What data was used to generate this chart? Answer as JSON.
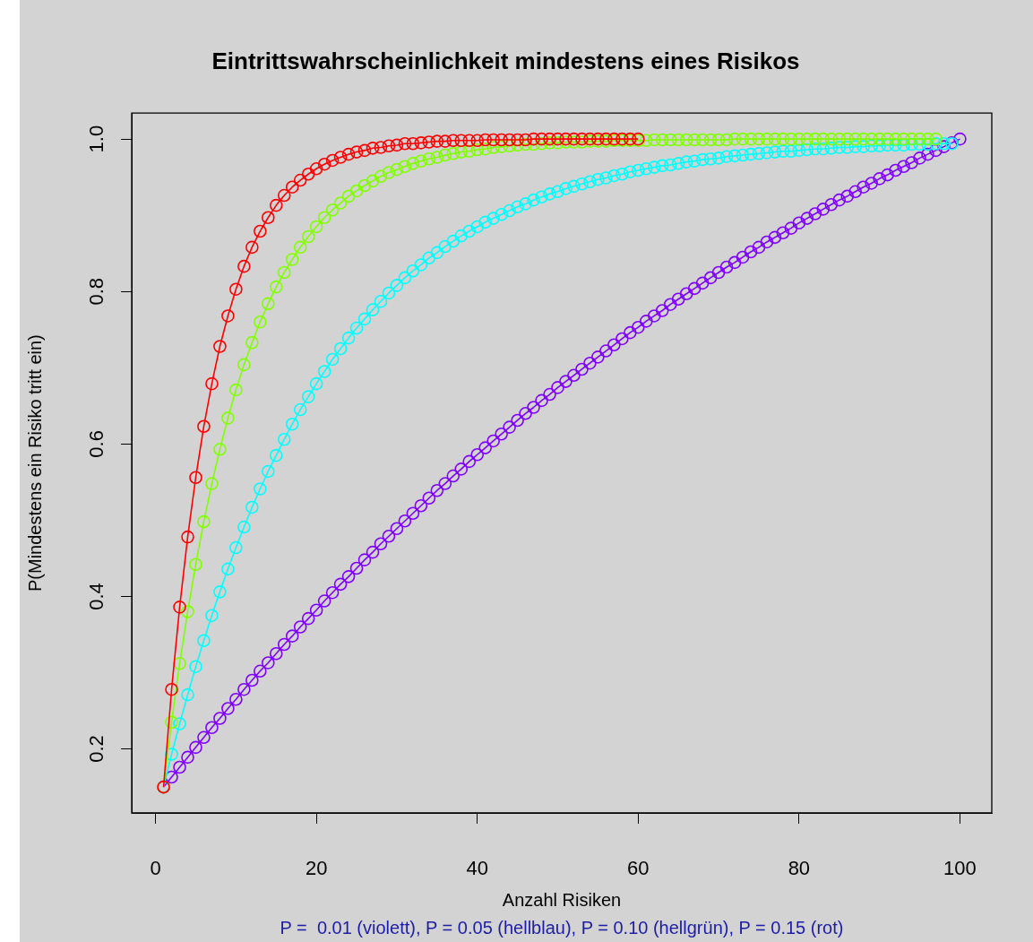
{
  "chart_data": {
    "type": "line",
    "title": "Eintrittswahrscheinlichkeit mindestens eines Risikos",
    "xlabel": "Anzahl Risiken",
    "ylabel": "P(Mindestens ein Risiko tritt ein)",
    "annotations": [
      "P =  0.01 (violett), P = 0.05 (hellblau), P = 0.10 (hellgrün), P = 0.15 (rot)"
    ],
    "x": [
      1,
      2,
      3,
      4,
      5,
      6,
      7,
      8,
      9,
      10,
      11,
      12,
      13,
      14,
      15,
      16,
      17,
      18,
      19,
      20,
      21,
      22,
      23,
      24,
      25,
      26,
      27,
      28,
      29,
      30,
      31,
      32,
      33,
      34,
      35,
      36,
      37,
      38,
      39,
      40,
      41,
      42,
      43,
      44,
      45,
      46,
      47,
      48,
      49,
      50,
      51,
      52,
      53,
      54,
      55,
      56,
      57,
      58,
      59,
      60,
      61,
      62,
      63,
      64,
      65,
      66,
      67,
      68,
      69,
      70,
      71,
      72,
      73,
      74,
      75,
      76,
      77,
      78,
      79,
      80,
      81,
      82,
      83,
      84,
      85,
      86,
      87,
      88,
      89,
      90,
      91,
      92,
      93,
      94,
      95,
      96,
      97,
      98,
      99,
      100
    ],
    "series": [
      {
        "color": "#8000ff",
        "values": [
          0.15,
          0.163,
          0.176,
          0.189,
          0.202,
          0.215,
          0.228,
          0.24,
          0.253,
          0.265,
          0.278,
          0.29,
          0.302,
          0.313,
          0.325,
          0.337,
          0.348,
          0.36,
          0.371,
          0.382,
          0.394,
          0.405,
          0.416,
          0.426,
          0.437,
          0.448,
          0.458,
          0.469,
          0.479,
          0.489,
          0.499,
          0.509,
          0.519,
          0.529,
          0.539,
          0.548,
          0.558,
          0.567,
          0.577,
          0.586,
          0.595,
          0.604,
          0.613,
          0.622,
          0.631,
          0.64,
          0.648,
          0.657,
          0.665,
          0.674,
          0.682,
          0.69,
          0.698,
          0.706,
          0.714,
          0.722,
          0.73,
          0.738,
          0.746,
          0.753,
          0.761,
          0.768,
          0.775,
          0.783,
          0.79,
          0.797,
          0.804,
          0.811,
          0.818,
          0.825,
          0.832,
          0.838,
          0.845,
          0.852,
          0.858,
          0.865,
          0.871,
          0.877,
          0.883,
          0.89,
          0.896,
          0.902,
          0.908,
          0.914,
          0.92,
          0.925,
          0.931,
          0.937,
          0.942,
          0.948,
          0.953,
          0.959,
          0.964,
          0.969,
          0.975,
          0.98,
          0.985,
          0.99,
          0.995,
          1
        ]
      },
      {
        "color": "#00ffff",
        "values": [
          0.15,
          0.193,
          0.233,
          0.271,
          0.308,
          0.342,
          0.375,
          0.406,
          0.436,
          0.464,
          0.491,
          0.517,
          0.541,
          0.564,
          0.585,
          0.606,
          0.626,
          0.645,
          0.662,
          0.679,
          0.695,
          0.711,
          0.725,
          0.739,
          0.752,
          0.764,
          0.776,
          0.787,
          0.798,
          0.808,
          0.818,
          0.827,
          0.835,
          0.844,
          0.851,
          0.859,
          0.866,
          0.873,
          0.879,
          0.885,
          0.891,
          0.896,
          0.901,
          0.906,
          0.911,
          0.915,
          0.92,
          0.924,
          0.928,
          0.931,
          0.935,
          0.938,
          0.941,
          0.944,
          0.947,
          0.949,
          0.952,
          0.954,
          0.957,
          0.959,
          0.961,
          0.963,
          0.965,
          0.966,
          0.968,
          0.97,
          0.971,
          0.973,
          0.974,
          0.975,
          0.977,
          0.978,
          0.979,
          0.98,
          0.981,
          0.982,
          0.983,
          0.984,
          0.984,
          0.985,
          0.986,
          0.987,
          0.987,
          0.988,
          0.989,
          0.989,
          0.99,
          0.99,
          0.991,
          0.991,
          0.992,
          0.992,
          0.992,
          0.993,
          0.993,
          0.993,
          0.994,
          0.994,
          0.994,
          null
        ]
      },
      {
        "color": "#80ff00",
        "values": [
          0.15,
          0.235,
          0.312,
          0.38,
          0.442,
          0.498,
          0.548,
          0.593,
          0.634,
          0.671,
          0.704,
          0.733,
          0.76,
          0.784,
          0.806,
          0.825,
          0.842,
          0.858,
          0.872,
          0.885,
          0.897,
          0.907,
          0.916,
          0.925,
          0.932,
          0.939,
          0.945,
          0.951,
          0.956,
          0.96,
          0.964,
          0.968,
          0.971,
          0.974,
          0.976,
          0.979,
          0.981,
          0.983,
          0.984,
          0.986,
          0.987,
          0.989,
          0.99,
          0.991,
          0.992,
          0.993,
          0.993,
          0.994,
          0.995,
          0.995,
          0.996,
          0.996,
          0.996,
          0.997,
          0.997,
          0.997,
          0.998,
          0.998,
          0.998,
          0.998,
          0.998,
          0.999,
          0.999,
          0.999,
          0.999,
          0.999,
          0.999,
          0.999,
          0.999,
          0.999,
          0.999,
          1,
          1,
          1,
          1,
          1,
          1,
          1,
          1,
          1,
          1,
          1,
          1,
          1,
          1,
          1,
          1,
          1,
          1,
          1,
          1,
          1,
          1,
          1,
          1,
          1,
          1,
          null,
          null,
          null
        ]
      },
      {
        "color": "#ff0000",
        "values": [
          0.15,
          0.278,
          0.386,
          0.478,
          0.556,
          0.623,
          0.679,
          0.728,
          0.768,
          0.803,
          0.833,
          0.858,
          0.879,
          0.897,
          0.913,
          0.926,
          0.937,
          0.946,
          0.954,
          0.961,
          0.967,
          0.972,
          0.976,
          0.98,
          0.983,
          0.985,
          0.988,
          0.989,
          0.991,
          0.992,
          0.994,
          0.994,
          0.995,
          0.996,
          0.997,
          0.997,
          0.998,
          0.998,
          0.998,
          0.998,
          0.999,
          0.999,
          0.999,
          0.999,
          0.999,
          0.999,
          1,
          1,
          1,
          1,
          1,
          1,
          1,
          1,
          1,
          1,
          1,
          1,
          1,
          1,
          null,
          null,
          null,
          null,
          null,
          null,
          null,
          null,
          null,
          null,
          null,
          null,
          null,
          null,
          null,
          null,
          null,
          null,
          null,
          null,
          null,
          null,
          null,
          null,
          null,
          null,
          null,
          null,
          null,
          null,
          null,
          null,
          null,
          null,
          null,
          null,
          null,
          null,
          null,
          null
        ]
      }
    ],
    "xlim": [
      -2.96,
      103.96
    ],
    "xticks": [
      0,
      20,
      40,
      60,
      80,
      100
    ],
    "ylim": [
      0.116,
      1.034
    ],
    "yticks": [
      0.2,
      0.4,
      0.6,
      0.8,
      {
        "value": 1,
        "label": "1.0"
      }
    ],
    "grid": false,
    "legend": false,
    "marker": "circle",
    "line_style": "solid"
  }
}
